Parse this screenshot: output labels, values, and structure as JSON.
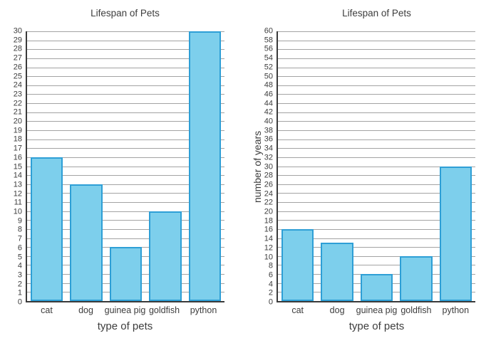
{
  "figure": {
    "background": "#ffffff"
  },
  "chart_data": [
    {
      "type": "bar",
      "title": "Lifespan of Pets",
      "xlabel": "type of pets",
      "ylabel": "",
      "categories": [
        "cat",
        "dog",
        "guinea pig",
        "goldfish",
        "python"
      ],
      "values": [
        16,
        13,
        6,
        10,
        30
      ],
      "ylim": [
        0,
        30
      ],
      "ytick_step": 1,
      "grid": true,
      "legend_position": "none",
      "bar_fill": "#7dcfec",
      "bar_edge": "#2e9fd6",
      "gridline_color": "#a3a3a3",
      "axis_color": "#3a3a3a",
      "text_color": "#3d3d3d"
    },
    {
      "type": "bar",
      "title": "Lifespan of Pets",
      "xlabel": "type of pets",
      "ylabel": "number of years",
      "categories": [
        "cat",
        "dog",
        "guinea pig",
        "goldfish",
        "python"
      ],
      "values": [
        16,
        13,
        6,
        10,
        30
      ],
      "ylim": [
        0,
        60
      ],
      "ytick_step": 2,
      "grid": true,
      "legend_position": "none",
      "bar_fill": "#7dcfec",
      "bar_edge": "#2e9fd6",
      "gridline_color": "#a3a3a3",
      "axis_color": "#3a3a3a",
      "text_color": "#3d3d3d"
    }
  ]
}
